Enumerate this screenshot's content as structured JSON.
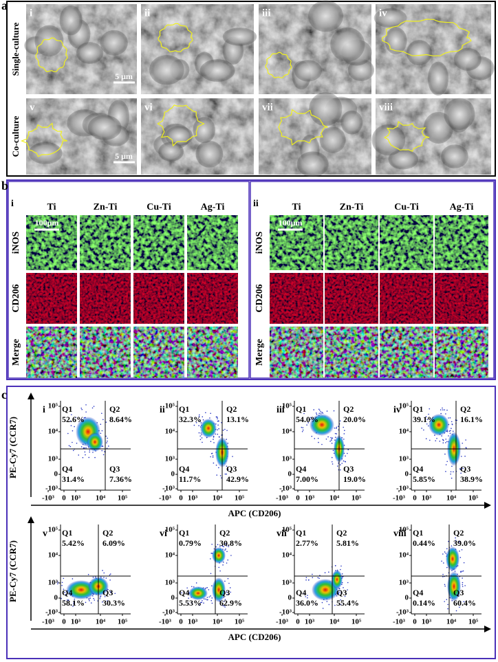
{
  "panel_a": {
    "label": "a",
    "row_labels": [
      "Single-culture",
      "Co-culture"
    ],
    "images": [
      "i",
      "ii",
      "iii",
      "iv",
      "v",
      "vi",
      "vii",
      "viii"
    ],
    "scale_bar": "5 μm"
  },
  "panel_b": {
    "label": "b",
    "groups": [
      {
        "label": "i",
        "columns": [
          "Ti",
          "Zn-Ti",
          "Cu-Ti",
          "Ag-Ti"
        ],
        "rows": [
          "iNOS",
          "CD206",
          "Merge"
        ],
        "scale_bar": "100μm"
      },
      {
        "label": "ii",
        "columns": [
          "Ti",
          "Zn-Ti",
          "Cu-Ti",
          "Ag-Ti"
        ],
        "rows": [
          "iNOS",
          "CD206",
          "Merge"
        ],
        "scale_bar": "100μm"
      }
    ]
  },
  "panel_c": {
    "label": "c",
    "y_axis_label": "PE-Cy7 (CCR7)",
    "x_axis_label": "APC (CD206)",
    "y_ticks": [
      "10⁵",
      "10⁴",
      "10³",
      "0",
      "-10³"
    ],
    "x_ticks": [
      "-10³",
      "0",
      "10³",
      "10⁴",
      "10⁵"
    ],
    "plots": [
      {
        "label": "i",
        "quadrants": [
          {
            "name": "Q1",
            "value": "52.6%"
          },
          {
            "name": "Q2",
            "value": "8.64%"
          },
          {
            "name": "Q4",
            "value": "31.4%"
          },
          {
            "name": "Q3",
            "value": "7.36%"
          }
        ]
      },
      {
        "label": "ii",
        "quadrants": [
          {
            "name": "Q1",
            "value": "32.3%"
          },
          {
            "name": "Q2",
            "value": "13.1%"
          },
          {
            "name": "Q4",
            "value": "11.7%"
          },
          {
            "name": "Q3",
            "value": "42.9%"
          }
        ]
      },
      {
        "label": "iii",
        "quadrants": [
          {
            "name": "Q1",
            "value": "54.0%"
          },
          {
            "name": "Q2",
            "value": "20.0%"
          },
          {
            "name": "Q4",
            "value": "7.00%"
          },
          {
            "name": "Q3",
            "value": "19.0%"
          }
        ]
      },
      {
        "label": "iv",
        "quadrants": [
          {
            "name": "Q1",
            "value": "39.1%"
          },
          {
            "name": "Q2",
            "value": "16.1%"
          },
          {
            "name": "Q4",
            "value": "5.85%"
          },
          {
            "name": "Q3",
            "value": "38.9%"
          }
        ]
      },
      {
        "label": "v",
        "quadrants": [
          {
            "name": "Q1",
            "value": "5.42%"
          },
          {
            "name": "Q2",
            "value": "6.09%"
          },
          {
            "name": "Q4",
            "value": "58.1%"
          },
          {
            "name": "Q3",
            "value": "30.3%"
          }
        ]
      },
      {
        "label": "vi",
        "quadrants": [
          {
            "name": "Q1",
            "value": "0.79%"
          },
          {
            "name": "Q2",
            "value": "30.8%"
          },
          {
            "name": "Q4",
            "value": "5.53%"
          },
          {
            "name": "Q3",
            "value": "62.9%"
          }
        ]
      },
      {
        "label": "vii",
        "quadrants": [
          {
            "name": "Q1",
            "value": "2.77%"
          },
          {
            "name": "Q2",
            "value": "5.81%"
          },
          {
            "name": "Q4",
            "value": "36.0%"
          },
          {
            "name": "Q3",
            "value": "55.4%"
          }
        ]
      },
      {
        "label": "viii",
        "quadrants": [
          {
            "name": "Q1",
            "value": "0.44%"
          },
          {
            "name": "Q2",
            "value": "39.0%"
          },
          {
            "name": "Q4",
            "value": "0.14%"
          },
          {
            "name": "Q3",
            "value": "60.4%"
          }
        ]
      }
    ]
  }
}
